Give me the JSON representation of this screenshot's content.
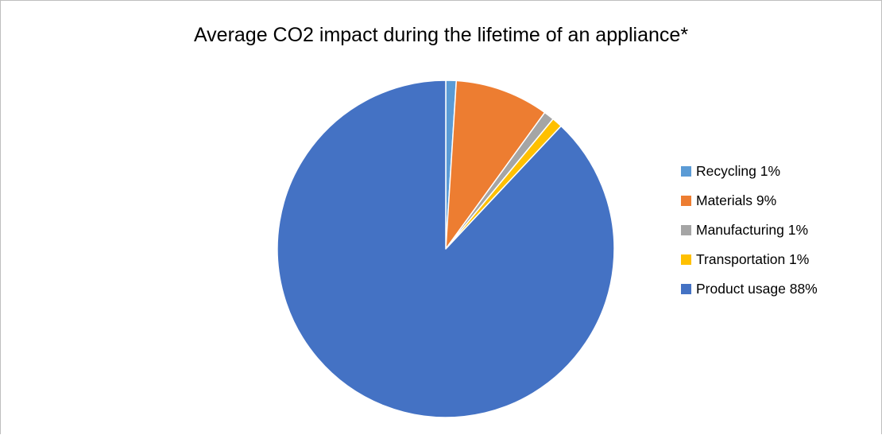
{
  "chart_data": {
    "type": "pie",
    "title": "Average CO2 impact during the lifetime of an appliance*",
    "slices": [
      {
        "label": "Recycling 1%",
        "name": "Recycling",
        "value": 1,
        "color": "#5b9bd5"
      },
      {
        "label": "Materials 9%",
        "name": "Materials",
        "value": 9,
        "color": "#ed7d31"
      },
      {
        "label": "Manufacturing 1%",
        "name": "Manufacturing",
        "value": 1,
        "color": "#a5a5a5"
      },
      {
        "label": "Transportation 1%",
        "name": "Transportation",
        "value": 1,
        "color": "#ffc000"
      },
      {
        "label": "Product usage 88%",
        "name": "Product usage",
        "value": 88,
        "color": "#4472c4"
      }
    ],
    "start_angle": "12 o'clock",
    "direction": "clockwise",
    "legend_position": "right"
  }
}
